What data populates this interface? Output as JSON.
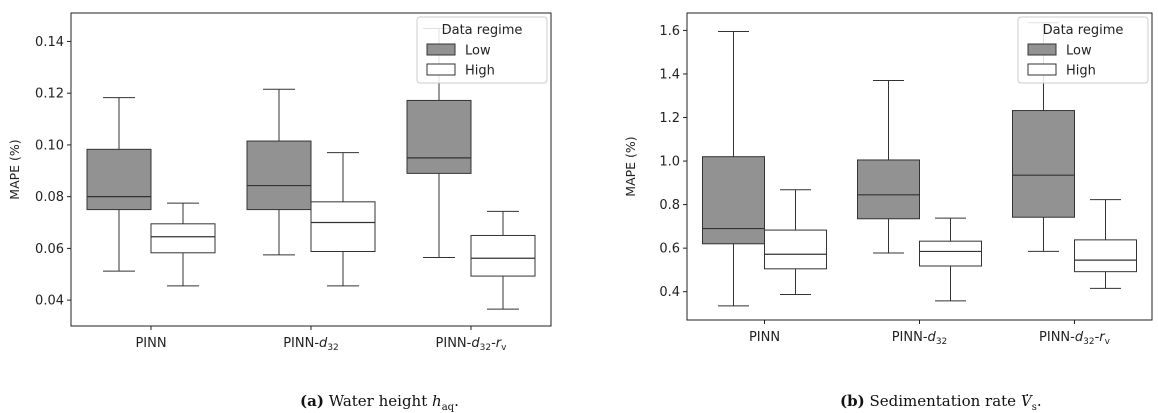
{
  "chart_data": [
    {
      "type": "box",
      "ylabel": "MAPE (%)",
      "ylim": [
        0.03,
        0.151
      ],
      "yticks": [
        0.04,
        0.06,
        0.08,
        0.1,
        0.12,
        0.14
      ],
      "ytick_labels": [
        "0.04",
        "0.06",
        "0.08",
        "0.10",
        "0.12",
        "0.14"
      ],
      "categories": [
        {
          "label": "PINN",
          "sub1": "",
          "sub2": ""
        },
        {
          "label": "PINN-",
          "sub1": "32",
          "sub2": ""
        },
        {
          "label": "PINN-",
          "sub1": "32",
          "sub2": "v"
        }
      ],
      "legend": {
        "title": "Data regime",
        "position": "top-right",
        "entries": [
          "Low",
          "High"
        ]
      },
      "series": [
        {
          "name": "Low",
          "color": "#929292",
          "boxes": [
            {
              "whislo": 0.0512,
              "q1": 0.075,
              "med": 0.08,
              "q3": 0.0983,
              "whishi": 0.1183
            },
            {
              "whislo": 0.0575,
              "q1": 0.075,
              "med": 0.0843,
              "q3": 0.1015,
              "whishi": 0.1215
            },
            {
              "whislo": 0.0565,
              "q1": 0.089,
              "med": 0.095,
              "q3": 0.1172,
              "whishi": 0.145
            }
          ]
        },
        {
          "name": "High",
          "color": "#ffffff",
          "boxes": [
            {
              "whislo": 0.0455,
              "q1": 0.0583,
              "med": 0.0645,
              "q3": 0.0695,
              "whishi": 0.0775
            },
            {
              "whislo": 0.0455,
              "q1": 0.0588,
              "med": 0.07,
              "q3": 0.078,
              "whishi": 0.097
            },
            {
              "whislo": 0.0365,
              "q1": 0.0493,
              "med": 0.0562,
              "q3": 0.065,
              "whishi": 0.0743
            }
          ]
        }
      ]
    },
    {
      "type": "box",
      "ylabel": "MAPE (%)",
      "ylim": [
        0.27,
        1.68
      ],
      "yticks": [
        0.4,
        0.6,
        0.8,
        1.0,
        1.2,
        1.4,
        1.6
      ],
      "ytick_labels": [
        "0.4",
        "0.6",
        "0.8",
        "1.0",
        "1.2",
        "1.4",
        "1.6"
      ],
      "categories": [
        {
          "label": "PINN",
          "sub1": "",
          "sub2": ""
        },
        {
          "label": "PINN-",
          "sub1": "32",
          "sub2": ""
        },
        {
          "label": "PINN-",
          "sub1": "32",
          "sub2": "v"
        }
      ],
      "legend": {
        "title": "Data regime",
        "position": "top-right",
        "entries": [
          "Low",
          "High"
        ]
      },
      "series": [
        {
          "name": "Low",
          "color": "#929292",
          "boxes": [
            {
              "whislo": 0.335,
              "q1": 0.62,
              "med": 0.69,
              "q3": 1.02,
              "whishi": 1.595
            },
            {
              "whislo": 0.578,
              "q1": 0.735,
              "med": 0.845,
              "q3": 1.005,
              "whishi": 1.37
            },
            {
              "whislo": 0.585,
              "q1": 0.742,
              "med": 0.935,
              "q3": 1.232,
              "whishi": 1.635
            }
          ]
        },
        {
          "name": "High",
          "color": "#ffffff",
          "boxes": [
            {
              "whislo": 0.387,
              "q1": 0.505,
              "med": 0.572,
              "q3": 0.683,
              "whishi": 0.868
            },
            {
              "whislo": 0.358,
              "q1": 0.518,
              "med": 0.585,
              "q3": 0.632,
              "whishi": 0.738
            },
            {
              "whislo": 0.415,
              "q1": 0.492,
              "med": 0.545,
              "q3": 0.638,
              "whishi": 0.823
            }
          ]
        }
      ]
    }
  ],
  "captions": [
    {
      "tag": "(a)",
      "text": "Water height",
      "symbol": "h",
      "sub": "aq",
      "end": "."
    },
    {
      "tag": "(b)",
      "text": "Sedimentation rate",
      "symbol": "V",
      "sub": "s",
      "end": "."
    }
  ]
}
